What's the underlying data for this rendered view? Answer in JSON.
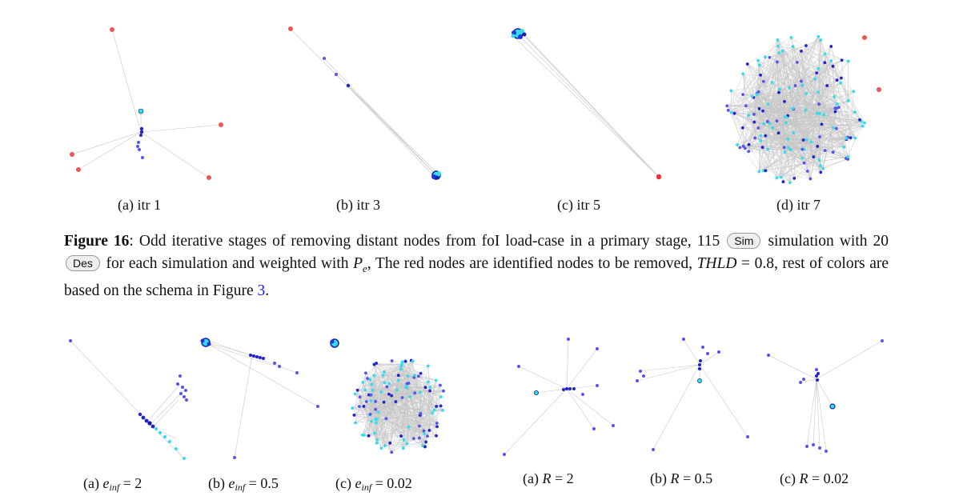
{
  "top_row": {
    "a": "(a) itr 1",
    "b": "(b) itr 3",
    "c": "(c) itr 5",
    "d": "(d) itr 7"
  },
  "figure": {
    "label": "Figure 16",
    "text_1": ": Odd iterative stages of removing distant nodes from foI load-case in a primary stage, 115",
    "pill_sim": "Sim",
    "text_2": "simulation with 20",
    "pill_des": "Des",
    "text_3": "for each simulation and weighted with",
    "math_pe": "P",
    "math_pe_sub": "e",
    "text_4": ", The red nodes are identified nodes to be removed,",
    "math_thld": "THLD",
    "text_5": "= 0.8, rest of colors are based on the schema in Figure",
    "ref": "3",
    "text_6": "."
  },
  "bottom_left": {
    "a_prefix": "(a)",
    "a_var": "e",
    "a_sub": "inf",
    "a_val": "= 2",
    "b_prefix": "(b)",
    "b_var": "e",
    "b_sub": "inf",
    "b_val": "= 0.5",
    "c_prefix": "(c)",
    "c_var": "e",
    "c_sub": "inf",
    "c_val": "= 0.02"
  },
  "bottom_right": {
    "a_prefix": "(a)",
    "a_var": "R",
    "a_val": "= 2",
    "b_prefix": "(b)",
    "b_var": "R",
    "b_val": "= 0.5",
    "c_prefix": "(c)",
    "c_var": "R",
    "c_val": "= 0.02"
  },
  "colors": {
    "removed": "#ee4444",
    "blue": "#2222dd",
    "light_blue": "#5555ee",
    "cyan": "#33ddee",
    "edge": "#c8c8c8"
  }
}
